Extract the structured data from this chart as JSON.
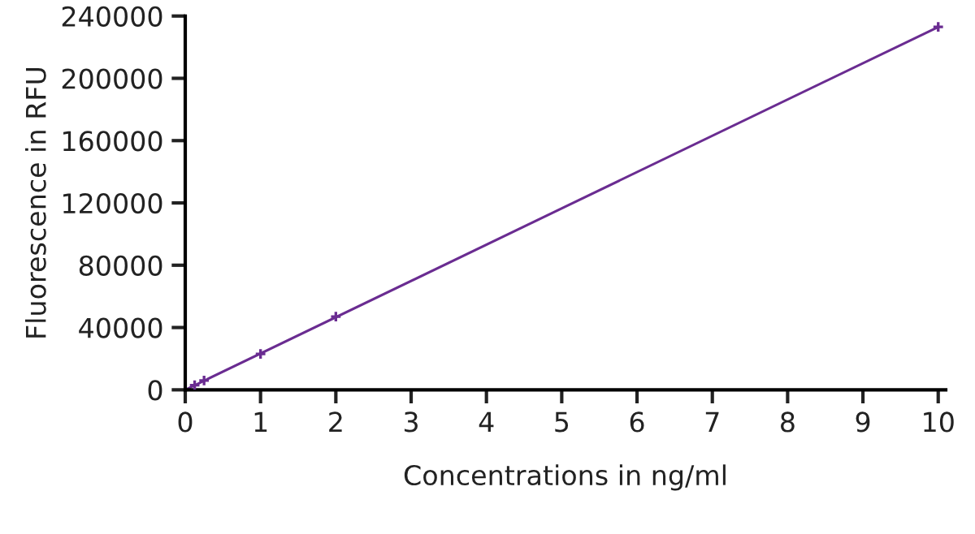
{
  "chart_data": {
    "type": "scatter",
    "xlabel": "Concentrations in ng/ml",
    "ylabel": "Fluorescence in RFU",
    "xlim": [
      0,
      10.1
    ],
    "xticks": [
      0,
      1,
      2,
      3,
      4,
      5,
      6,
      7,
      8,
      9,
      10
    ],
    "ylim": [
      0,
      240000
    ],
    "yticks": [
      0,
      40000,
      80000,
      120000,
      160000,
      200000,
      240000
    ],
    "grid": false,
    "legend": false,
    "series": [
      {
        "color": "#6a2c91",
        "marker": "cross",
        "x": [
          0.125,
          0.25,
          1,
          2,
          10
        ],
        "values": [
          3000,
          6000,
          23000,
          47000,
          233000
        ]
      },
      {
        "type": "line",
        "color": "#6a2c91",
        "line_style": "solid",
        "x": [
          0,
          10
        ],
        "values": [
          0,
          233000
        ]
      }
    ]
  }
}
